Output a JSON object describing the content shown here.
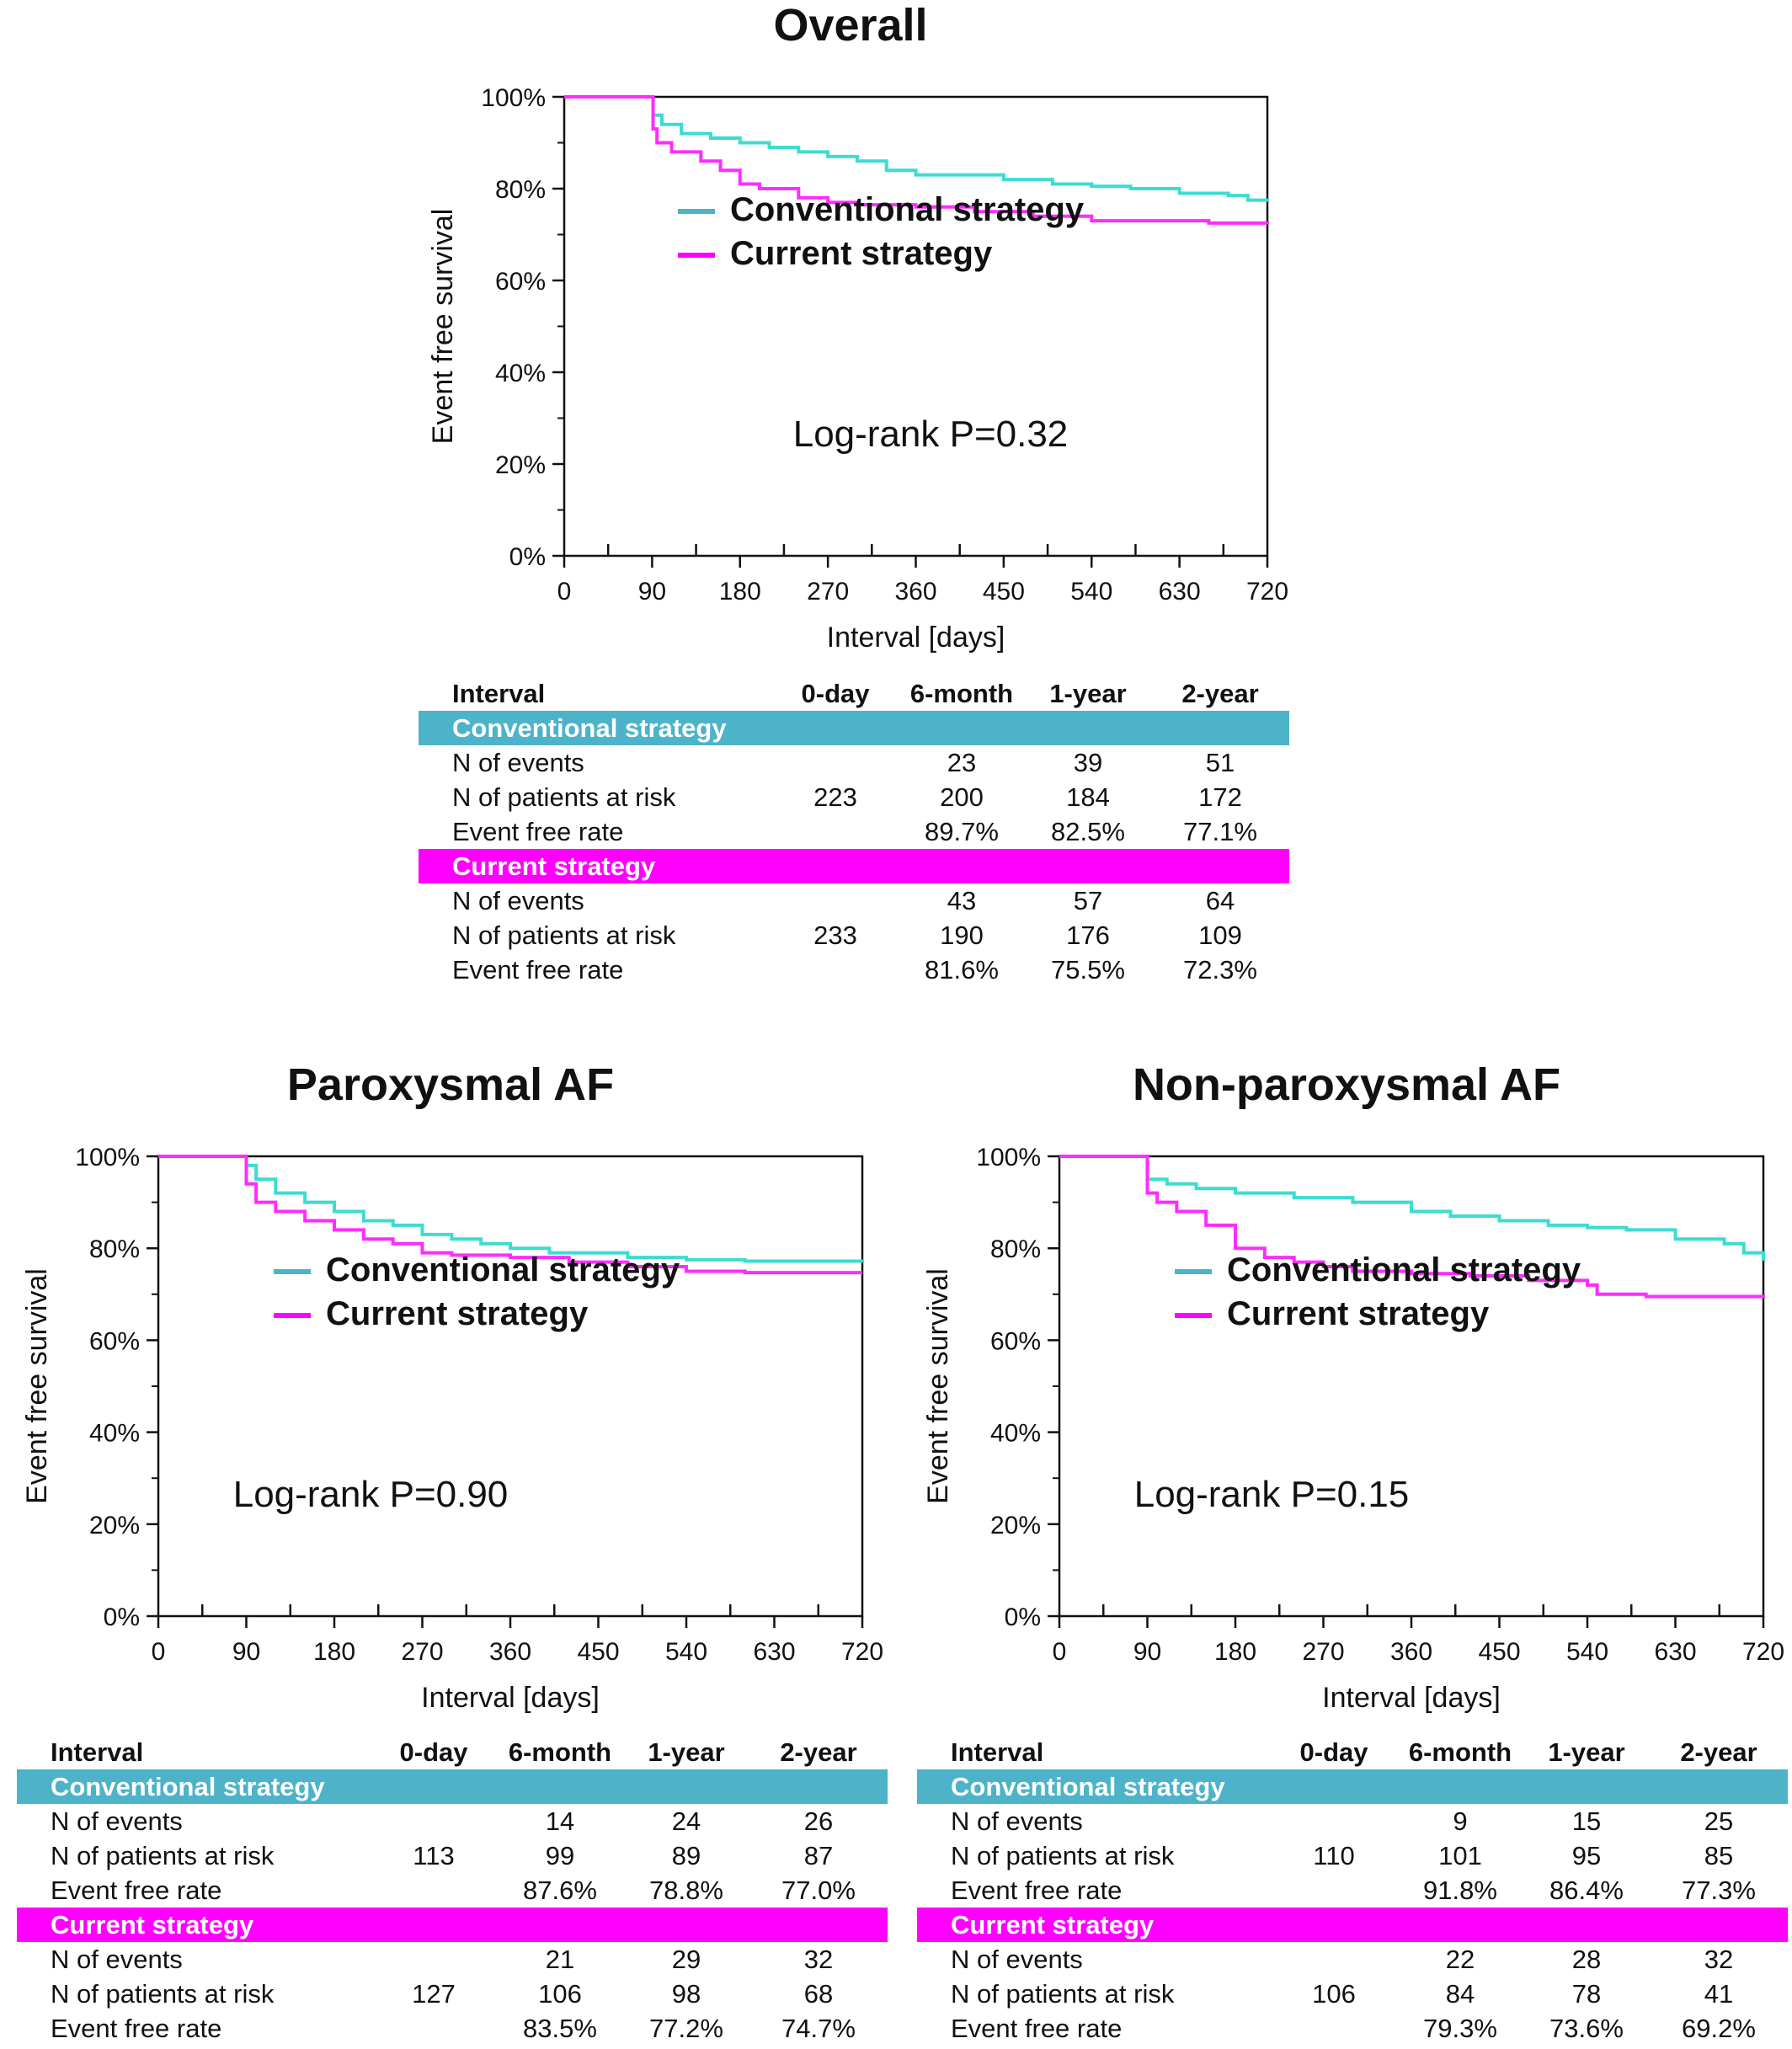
{
  "colors": {
    "conventional": "#4db3c8",
    "current": "#ff00ff",
    "conv_line": "#3ddcd1",
    "curr_line": "#ff2cff"
  },
  "panels": [
    {
      "title": "Overall",
      "ylabel": "Event free survival",
      "xlabel": "Interval [days]",
      "pvalue": "Log-rank P=0.32",
      "legend": [
        "Conventional strategy",
        "Current strategy"
      ],
      "yticks": [
        "0%",
        "20%",
        "40%",
        "60%",
        "80%",
        "100%"
      ],
      "xticks": [
        "0",
        "90",
        "180",
        "270",
        "360",
        "450",
        "540",
        "630",
        "720"
      ],
      "table": {
        "header": [
          "Interval",
          "0-day",
          "6-month",
          "1-year",
          "2-year"
        ],
        "groups": [
          {
            "name": "Conventional strategy",
            "color": "conventional",
            "rows": [
              [
                "N of events",
                "",
                "23",
                "39",
                "51"
              ],
              [
                "N of patients at risk",
                "223",
                "200",
                "184",
                "172"
              ],
              [
                "Event free rate",
                "",
                "89.7%",
                "82.5%",
                "77.1%"
              ]
            ]
          },
          {
            "name": "Current strategy",
            "color": "current",
            "rows": [
              [
                "N of events",
                "",
                "43",
                "57",
                "64"
              ],
              [
                "N of patients at risk",
                "233",
                "190",
                "176",
                "109"
              ],
              [
                "Event free rate",
                "",
                "81.6%",
                "75.5%",
                "72.3%"
              ]
            ]
          }
        ]
      }
    },
    {
      "title": "Paroxysmal AF",
      "ylabel": "Event free survival",
      "xlabel": "Interval [days]",
      "pvalue": "Log-rank P=0.90",
      "legend": [
        "Conventional strategy",
        "Current strategy"
      ],
      "yticks": [
        "0%",
        "20%",
        "40%",
        "60%",
        "80%",
        "100%"
      ],
      "xticks": [
        "0",
        "90",
        "180",
        "270",
        "360",
        "450",
        "540",
        "630",
        "720"
      ],
      "table": {
        "header": [
          "Interval",
          "0-day",
          "6-month",
          "1-year",
          "2-year"
        ],
        "groups": [
          {
            "name": "Conventional strategy",
            "color": "conventional",
            "rows": [
              [
                "N of events",
                "",
                "14",
                "24",
                "26"
              ],
              [
                "N of patients at risk",
                "113",
                "99",
                "89",
                "87"
              ],
              [
                "Event free rate",
                "",
                "87.6%",
                "78.8%",
                "77.0%"
              ]
            ]
          },
          {
            "name": "Current strategy",
            "color": "current",
            "rows": [
              [
                "N of events",
                "",
                "21",
                "29",
                "32"
              ],
              [
                "N of patients at risk",
                "127",
                "106",
                "98",
                "68"
              ],
              [
                "Event free rate",
                "",
                "83.5%",
                "77.2%",
                "74.7%"
              ]
            ]
          }
        ]
      }
    },
    {
      "title": "Non-paroxysmal AF",
      "ylabel": "Event free survival",
      "xlabel": "Interval [days]",
      "pvalue": "Log-rank P=0.15",
      "legend": [
        "Conventional strategy",
        "Current strategy"
      ],
      "yticks": [
        "0%",
        "20%",
        "40%",
        "60%",
        "80%",
        "100%"
      ],
      "xticks": [
        "0",
        "90",
        "180",
        "270",
        "360",
        "450",
        "540",
        "630",
        "720"
      ],
      "table": {
        "header": [
          "Interval",
          "0-day",
          "6-month",
          "1-year",
          "2-year"
        ],
        "groups": [
          {
            "name": "Conventional strategy",
            "color": "conventional",
            "rows": [
              [
                "N of events",
                "",
                "9",
                "15",
                "25"
              ],
              [
                "N of patients at risk",
                "110",
                "101",
                "95",
                "85"
              ],
              [
                "Event free rate",
                "",
                "91.8%",
                "86.4%",
                "77.3%"
              ]
            ]
          },
          {
            "name": "Current strategy",
            "color": "current",
            "rows": [
              [
                "N of events",
                "",
                "22",
                "28",
                "32"
              ],
              [
                "N of patients at risk",
                "106",
                "84",
                "78",
                "41"
              ],
              [
                "Event free rate",
                "",
                "79.3%",
                "73.6%",
                "69.2%"
              ]
            ]
          }
        ]
      }
    }
  ],
  "chart_data": [
    {
      "type": "line",
      "title": "Overall",
      "xlabel": "Interval [days]",
      "ylabel": "Event free survival",
      "xlim": [
        0,
        720
      ],
      "ylim": [
        0,
        100
      ],
      "grid": false,
      "legend": "center",
      "series": [
        {
          "name": "Conventional strategy",
          "points": [
            [
              0,
              100
            ],
            [
              90,
              100
            ],
            [
              91,
              96
            ],
            [
              100,
              94
            ],
            [
              120,
              92
            ],
            [
              150,
              91
            ],
            [
              180,
              90
            ],
            [
              210,
              89
            ],
            [
              240,
              88
            ],
            [
              270,
              87
            ],
            [
              300,
              86
            ],
            [
              330,
              84
            ],
            [
              360,
              83
            ],
            [
              400,
              83
            ],
            [
              450,
              82
            ],
            [
              500,
              81
            ],
            [
              540,
              80.5
            ],
            [
              580,
              80
            ],
            [
              630,
              79
            ],
            [
              680,
              78.5
            ],
            [
              700,
              77.5
            ],
            [
              720,
              77.1
            ]
          ]
        },
        {
          "name": "Current strategy",
          "points": [
            [
              0,
              100
            ],
            [
              90,
              100
            ],
            [
              91,
              93
            ],
            [
              95,
              90
            ],
            [
              110,
              88
            ],
            [
              140,
              86
            ],
            [
              160,
              84
            ],
            [
              180,
              81
            ],
            [
              200,
              80
            ],
            [
              240,
              78
            ],
            [
              270,
              77
            ],
            [
              300,
              76.5
            ],
            [
              360,
              76
            ],
            [
              420,
              75
            ],
            [
              480,
              74
            ],
            [
              540,
              73
            ],
            [
              600,
              73
            ],
            [
              660,
              72.5
            ],
            [
              720,
              72.3
            ]
          ]
        }
      ]
    },
    {
      "type": "line",
      "title": "Paroxysmal AF",
      "xlabel": "Interval [days]",
      "ylabel": "Event free survival",
      "xlim": [
        0,
        720
      ],
      "ylim": [
        0,
        100
      ],
      "grid": false,
      "legend": "center",
      "series": [
        {
          "name": "Conventional strategy",
          "points": [
            [
              0,
              100
            ],
            [
              85,
              100
            ],
            [
              90,
              98
            ],
            [
              100,
              95
            ],
            [
              120,
              92
            ],
            [
              150,
              90
            ],
            [
              180,
              88
            ],
            [
              210,
              86
            ],
            [
              240,
              85
            ],
            [
              270,
              83
            ],
            [
              300,
              82
            ],
            [
              330,
              81
            ],
            [
              360,
              80
            ],
            [
              400,
              79
            ],
            [
              450,
              79
            ],
            [
              480,
              78
            ],
            [
              540,
              77.5
            ],
            [
              600,
              77.2
            ],
            [
              720,
              77.0
            ]
          ]
        },
        {
          "name": "Current strategy",
          "points": [
            [
              0,
              100
            ],
            [
              85,
              100
            ],
            [
              90,
              94
            ],
            [
              100,
              90
            ],
            [
              120,
              88
            ],
            [
              150,
              86
            ],
            [
              180,
              84
            ],
            [
              210,
              82
            ],
            [
              240,
              81
            ],
            [
              270,
              79
            ],
            [
              300,
              78.5
            ],
            [
              360,
              78
            ],
            [
              420,
              77
            ],
            [
              480,
              76
            ],
            [
              540,
              75
            ],
            [
              600,
              74.7
            ],
            [
              720,
              74.7
            ]
          ]
        }
      ]
    },
    {
      "type": "line",
      "title": "Non-paroxysmal AF",
      "xlabel": "Interval [days]",
      "ylabel": "Event free survival",
      "xlim": [
        0,
        720
      ],
      "ylim": [
        0,
        100
      ],
      "grid": false,
      "legend": "center",
      "series": [
        {
          "name": "Conventional strategy",
          "points": [
            [
              0,
              100
            ],
            [
              88,
              100
            ],
            [
              90,
              95
            ],
            [
              110,
              94
            ],
            [
              140,
              93
            ],
            [
              180,
              92
            ],
            [
              240,
              91
            ],
            [
              300,
              90
            ],
            [
              360,
              88
            ],
            [
              400,
              87
            ],
            [
              450,
              86
            ],
            [
              500,
              85
            ],
            [
              540,
              84.5
            ],
            [
              580,
              84
            ],
            [
              630,
              82
            ],
            [
              680,
              81
            ],
            [
              700,
              79
            ],
            [
              720,
              77.3
            ]
          ]
        },
        {
          "name": "Current strategy",
          "points": [
            [
              0,
              100
            ],
            [
              88,
              100
            ],
            [
              90,
              92
            ],
            [
              100,
              90
            ],
            [
              120,
              88
            ],
            [
              150,
              85
            ],
            [
              180,
              80
            ],
            [
              210,
              78
            ],
            [
              240,
              77
            ],
            [
              270,
              76
            ],
            [
              300,
              75
            ],
            [
              360,
              74.5
            ],
            [
              420,
              74
            ],
            [
              480,
              73
            ],
            [
              540,
              72
            ],
            [
              550,
              70
            ],
            [
              600,
              69.5
            ],
            [
              720,
              69.2
            ]
          ]
        }
      ]
    }
  ]
}
